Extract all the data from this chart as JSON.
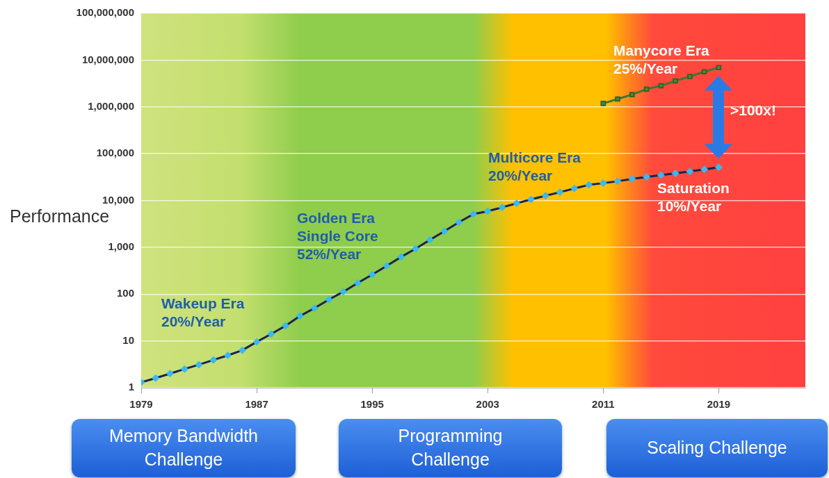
{
  "chart_data": {
    "type": "line",
    "ylabel": "Performance",
    "log": "y",
    "grid": "y",
    "legend": false,
    "marker": "diamond",
    "xlim": [
      1979,
      2025
    ],
    "xticks": [
      1979,
      1987,
      1995,
      2003,
      2011,
      2019
    ],
    "ylim": [
      1,
      100000000
    ],
    "yticks": [
      {
        "value": 1,
        "label": "1"
      },
      {
        "value": 10,
        "label": "10"
      },
      {
        "value": 100,
        "label": "100"
      },
      {
        "value": 1000,
        "label": "1,000"
      },
      {
        "value": 10000,
        "label": "10,000"
      },
      {
        "value": 100000,
        "label": "100,000"
      },
      {
        "value": 1000000,
        "label": "1,000,000"
      },
      {
        "value": 10000000,
        "label": "10,000,000"
      },
      {
        "value": 100000000,
        "label": "100,000,000"
      }
    ],
    "series": [
      {
        "color": "#3bb8f0",
        "x": [
          1979,
          1980,
          1981,
          1982,
          1983,
          1984,
          1985,
          1986,
          1987,
          1988,
          1989,
          1990,
          1991,
          1992,
          1993,
          1994,
          1995,
          1996,
          1997,
          1998,
          1999,
          2000,
          2001,
          2002,
          2003,
          2004,
          2005,
          2006,
          2007,
          2008,
          2009,
          2010,
          2011,
          2012,
          2013,
          2014,
          2015,
          2016,
          2017,
          2018,
          2019
        ],
        "values": [
          1.3,
          1.6,
          2,
          2.5,
          3.1,
          3.9,
          4.9,
          6.3,
          9.5,
          14,
          21,
          34,
          50,
          76,
          112,
          173,
          260,
          400,
          620,
          930,
          1440,
          2200,
          3400,
          5100,
          5900,
          7100,
          8700,
          10500,
          12600,
          15000,
          18000,
          21500,
          23400,
          25700,
          28900,
          31700,
          34700,
          37800,
          41500,
          46000,
          51000
        ]
      },
      {
        "color": "#4f8a3a",
        "marker": "square",
        "x": [
          2011,
          2012,
          2013,
          2014,
          2015,
          2016,
          2017,
          2018,
          2019
        ],
        "values": [
          1180000,
          1470000,
          1830000,
          2380000,
          2830000,
          3570000,
          4440000,
          5620000,
          6900000
        ]
      }
    ],
    "annotations": [
      "Wakeup Era\n20%/Year",
      "Golden Era\nSingle Core\n52%/Year",
      "Multicore Era\n20%/Year",
      "Manycore Era\n25%/Year",
      "Saturation\n10%/Year",
      ">100x!",
      "Memory Bandwidth\nChallenge",
      "Programming\nChallenge",
      "Scaling Challenge"
    ]
  }
}
